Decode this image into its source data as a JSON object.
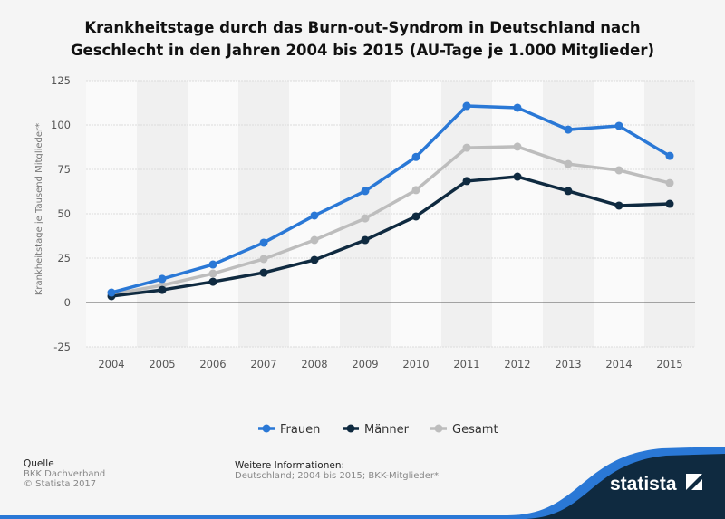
{
  "chart_data": {
    "type": "line",
    "title": "Krankheitstage durch das Burn-out-Syndrom in Deutschland nach Geschlecht in den Jahren 2004 bis 2015 (AU-Tage je 1.000 Mitglieder)",
    "title_lines": [
      "Krankheitstage durch das Burn-out-Syndrom in Deutschland nach",
      "Geschlecht in den Jahren 2004 bis 2015 (AU-Tage je 1.000 Mitglieder)"
    ],
    "ylabel": "Krankheitstage je Tausend Mitglieder*",
    "xlabel": "",
    "categories": [
      "2004",
      "2005",
      "2006",
      "2007",
      "2008",
      "2009",
      "2010",
      "2011",
      "2012",
      "2013",
      "2014",
      "2015"
    ],
    "ylim": [
      -25,
      125
    ],
    "yticks": [
      125,
      100,
      75,
      50,
      25,
      0,
      -25
    ],
    "grid": true,
    "legend_position": "bottom",
    "series": [
      {
        "name": "Frauen",
        "color": "#2a78d6",
        "values": [
          5.6,
          13.3,
          21.4,
          33.7,
          49,
          62.8,
          82,
          110.7,
          109.7,
          97.4,
          99.5,
          82.6
        ]
      },
      {
        "name": "Männer",
        "color": "#0f2a40",
        "values": [
          3.6,
          7.1,
          11.7,
          16.8,
          24,
          35.2,
          48.5,
          68.4,
          70.9,
          62.8,
          54.6,
          55.6
        ]
      },
      {
        "name": "Gesamt",
        "color": "#bdbdbd",
        "values": [
          4.6,
          9.7,
          16.3,
          24.5,
          35.2,
          47.4,
          63.3,
          87.2,
          87.8,
          78,
          74.5,
          67.3
        ]
      }
    ]
  },
  "footer": {
    "source_heading": "Quelle",
    "source": "BKK Dachverband",
    "copyright": "© Statista 2017",
    "info_heading": "Weitere Informationen:",
    "info": "Deutschland; 2004 bis 2015; BKK-Mitglieder*",
    "logo": "statista"
  }
}
